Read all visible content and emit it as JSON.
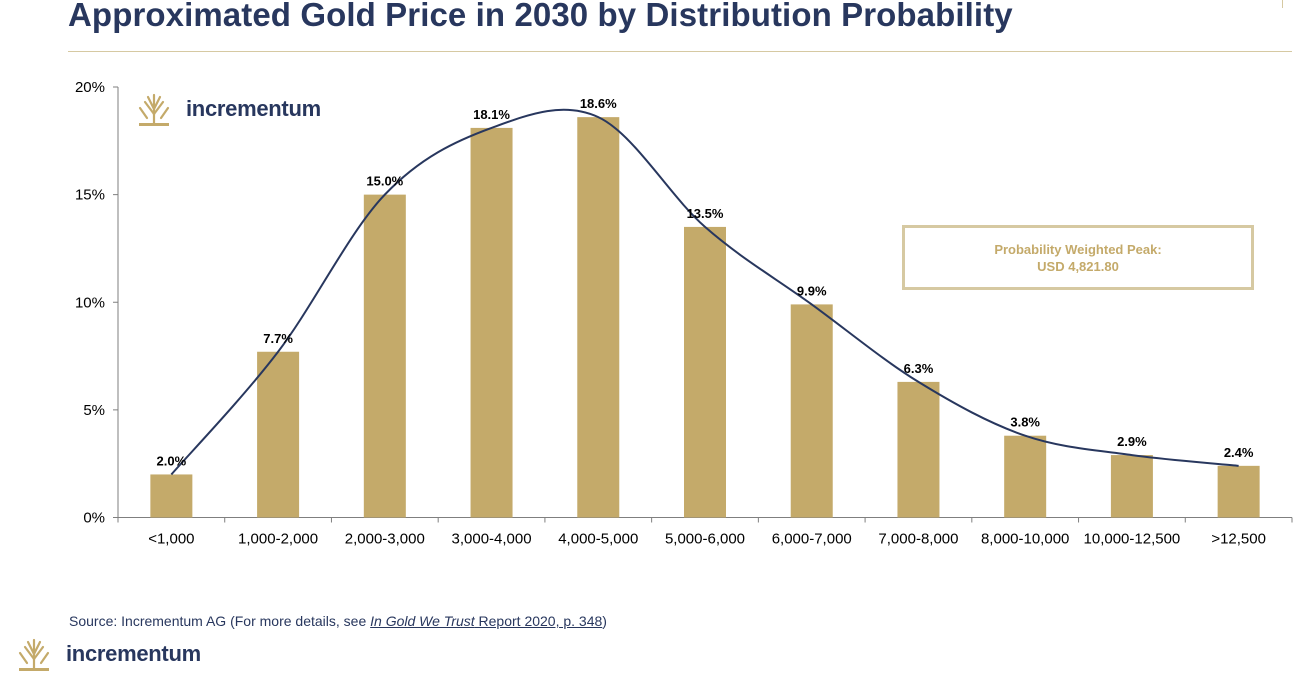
{
  "header": {
    "title": "Approximated Gold Price in 2030 by Distribution Probability"
  },
  "brand": {
    "name": "incrementum",
    "logo_icon": "tree-logo-icon",
    "logo_color": "#c4aa6a"
  },
  "chart_data": {
    "type": "bar",
    "categories": [
      "<1,000",
      "1,000-2,000",
      "2,000-3,000",
      "3,000-4,000",
      "4,000-5,000",
      "5,000-6,000",
      "6,000-7,000",
      "7,000-8,000",
      "8,000-10,000",
      "10,000-12,500",
      ">12,500"
    ],
    "values": [
      2.0,
      7.7,
      15.0,
      18.1,
      18.6,
      13.5,
      9.9,
      6.3,
      3.8,
      2.9,
      2.4
    ],
    "value_labels": [
      "2.0%",
      "7.7%",
      "15.0%",
      "18.1%",
      "18.6%",
      "13.5%",
      "9.9%",
      "6.3%",
      "3.8%",
      "2.9%",
      "2.4%"
    ],
    "y_ticks": [
      0,
      5,
      10,
      15,
      20
    ],
    "y_tick_labels": [
      "0%",
      "5%",
      "10%",
      "15%",
      "20%"
    ],
    "ylim": [
      0,
      20
    ],
    "xlabel": "",
    "ylabel": "",
    "bar_color": "#c4aa6a",
    "curve_color": "#28375e",
    "overlay": "smooth distribution curve through bar tops",
    "annotation": {
      "line1": "Probability Weighted Peak:",
      "line2": "USD 4,821.80",
      "color": "#c4aa6a"
    },
    "grid": false
  },
  "source": {
    "prefix": "Source: Incrementum AG (For more details, see ",
    "link_title": "In Gold We Trust",
    "link_rest": " Report 2020, p. 348",
    "suffix": ")"
  }
}
